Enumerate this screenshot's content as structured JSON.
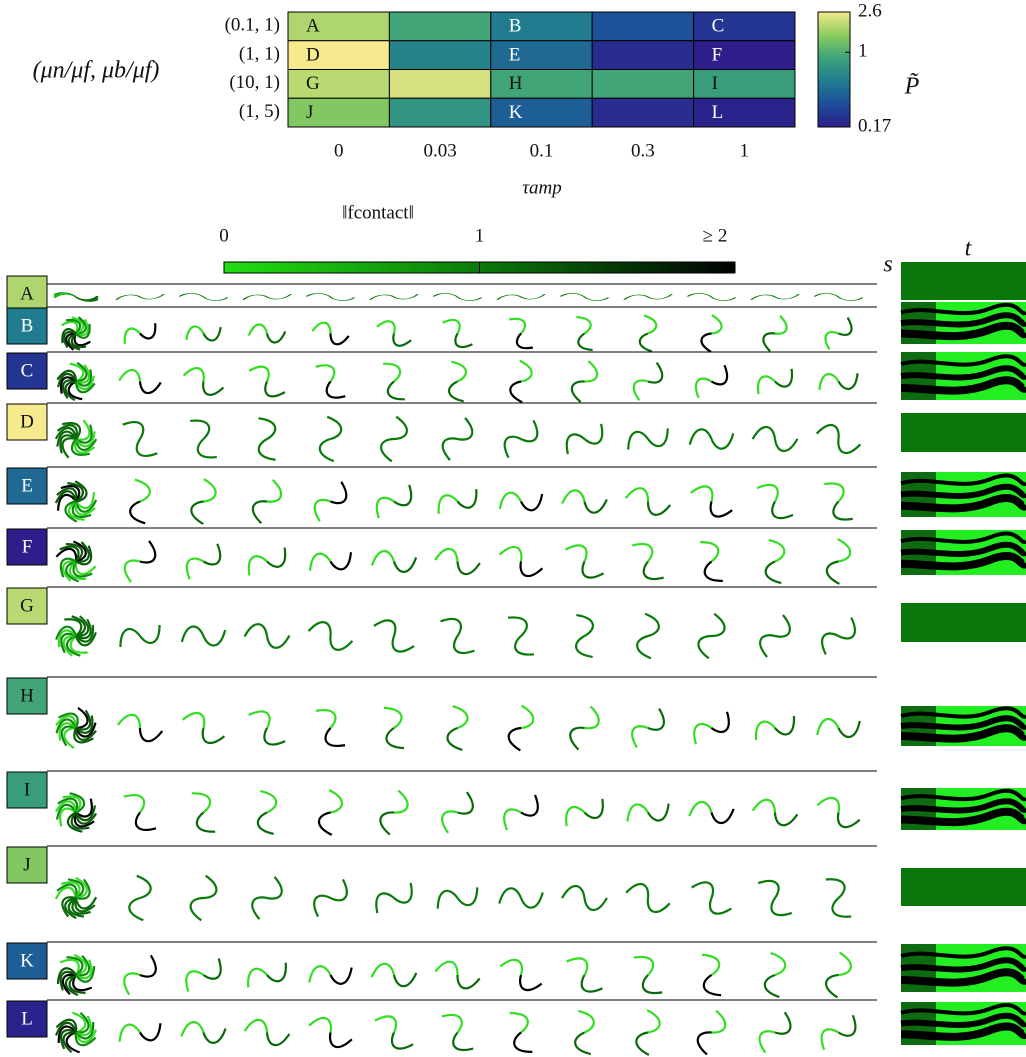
{
  "chart_data": [
    {
      "type": "heatmap",
      "xlabel": "τamp",
      "ylabel": "(μn/μf, μb/μf)",
      "categories": [
        "0",
        "0.03",
        "0.1",
        "0.3",
        "1"
      ],
      "rows": [
        "(0.1, 1)",
        "(1, 1)",
        "(10, 1)",
        "(1, 5)"
      ],
      "values": [
        [
          1.8,
          0.9,
          0.5,
          0.3,
          0.22
        ],
        [
          2.6,
          0.55,
          0.4,
          0.2,
          0.17
        ],
        [
          1.9,
          2.2,
          0.9,
          0.9,
          0.8
        ],
        [
          1.4,
          0.7,
          0.35,
          0.2,
          0.18
        ]
      ],
      "labels": [
        [
          "A",
          null,
          "B",
          null,
          "C"
        ],
        [
          "D",
          null,
          "E",
          null,
          "F"
        ],
        [
          "G",
          null,
          "H",
          null,
          "I"
        ],
        [
          "J",
          null,
          "K",
          null,
          "L"
        ]
      ],
      "colorbar_label": "P̃",
      "clim": [
        0.17,
        2.6
      ],
      "cticks": [
        0.17,
        1,
        2.6
      ],
      "log_scale": true,
      "colormap": [
        "#2d1e8a",
        "#1d4f9a",
        "#207d8e",
        "#3ea37a",
        "#8ccd5e",
        "#f6e98e"
      ]
    },
    {
      "type": "colorbar",
      "title": "‖fcontact‖",
      "xlim": [
        0,
        2
      ],
      "xticks": [
        0,
        1,
        {
          "value": 2,
          "label": "≥ 2"
        }
      ],
      "colormap": [
        "#22dd11",
        "#0a7a0a",
        "#000000"
      ],
      "s_label": "s",
      "t_label": "t"
    }
  ]
}
